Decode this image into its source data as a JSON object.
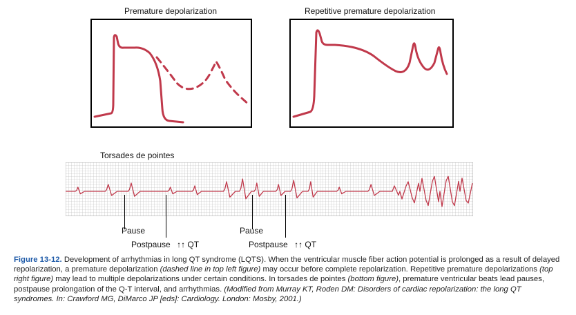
{
  "panels": {
    "left_title": "Premature depolarization",
    "right_title": "Repetitive premature depolarization"
  },
  "strip": {
    "title": "Torsades de pointes",
    "pause1": "Pause",
    "pause2": "Pause",
    "postpause1": "Postpause",
    "postpause2": "Postpause",
    "qt_label": "QT",
    "arrows": "↑↑"
  },
  "caption": {
    "fig_label": "Figure 13-12.",
    "s1": " Development of arrhythmias in long QT syndrome (LQTS). When the ventricular muscle fiber action potential is prolonged as a result of delayed repolarization, a premature depolarization ",
    "e1": "(dashed line in top left figure)",
    "s2": " may occur before complete repolarization. Repetitive premature depolarizations ",
    "e2": "(top right figure)",
    "s3": " may lead to multiple depolarizations under certain conditions. In torsades de pointes ",
    "e3": "(bottom figure)",
    "s4": ", premature ventricular beats lead pauses, postpause prolongation of the Q-T interval, and arrhythmias. ",
    "e4": "(Modified from Murray KT, Roden DM: Disorders of cardiac repolarization: the long QT syndromes. In: Crawford MG, DiMarco JP [eds]: Cardiology. London: Mosby, 2001.)"
  },
  "colors": {
    "trace": "#c0394b",
    "grid": "#b4b4b4",
    "caption_label": "#1e5aa8"
  }
}
